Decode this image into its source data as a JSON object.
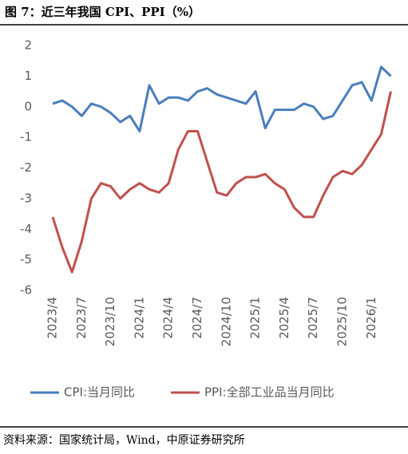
{
  "title": "图 7：近三年我国 CPI、PPI（%）",
  "source": "资料来源：国家统计局，Wind，中原证券研究所",
  "chart_data": {
    "type": "line",
    "categories": [
      "2023/4",
      null,
      null,
      "2023/7",
      null,
      null,
      "2023/10",
      null,
      null,
      "2024/1",
      null,
      null,
      "2024/4",
      null,
      null,
      "2024/7",
      null,
      null,
      "2024/10",
      null,
      null,
      "2025/1",
      null,
      null,
      "2025/4",
      null,
      null,
      "2025/7",
      null,
      null,
      "2025/10",
      null,
      null,
      "2026/1",
      null,
      null
    ],
    "series": [
      {
        "name": "CPI:当月同比",
        "color": "#4a7ebb",
        "values": [
          0.1,
          0.2,
          0.0,
          -0.3,
          0.1,
          0.0,
          -0.2,
          -0.5,
          -0.3,
          -0.8,
          0.7,
          0.1,
          0.3,
          0.3,
          0.2,
          0.5,
          0.6,
          0.4,
          0.3,
          0.2,
          0.1,
          0.5,
          -0.7,
          -0.1,
          -0.1,
          -0.1,
          0.1,
          0.0,
          -0.4,
          -0.3,
          0.2,
          0.7,
          0.8,
          0.2,
          1.3,
          1.0
        ]
      },
      {
        "name": "PPI:全部工业品当月同比",
        "color": "#c0504d",
        "values": [
          -3.6,
          -4.6,
          -5.4,
          -4.4,
          -3.0,
          -2.5,
          -2.6,
          -3.0,
          -2.7,
          -2.5,
          -2.7,
          -2.8,
          -2.5,
          -1.4,
          -0.8,
          -0.8,
          -1.8,
          -2.8,
          -2.9,
          -2.5,
          -2.3,
          -2.3,
          -2.2,
          -2.5,
          -2.7,
          -3.3,
          -3.6,
          -3.6,
          -2.9,
          -2.3,
          -2.1,
          -2.2,
          -1.9,
          -1.4,
          -0.9,
          0.5
        ]
      }
    ],
    "ylim": [
      -6,
      2
    ],
    "yticks": [
      2,
      1,
      0,
      -1,
      -2,
      -3,
      -4,
      -5,
      -6
    ],
    "grid": false,
    "legend": "bottom"
  }
}
